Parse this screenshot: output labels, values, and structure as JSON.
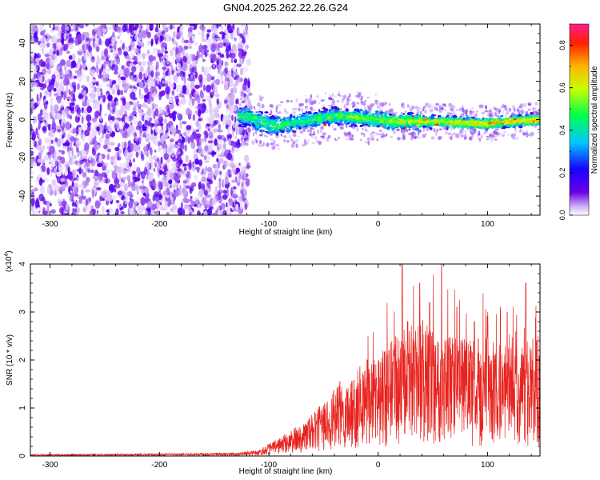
{
  "title": "GN04.2025.262.22.26.G24",
  "chart_data": [
    {
      "type": "heatmap",
      "name": "spectrogram",
      "xlabel": "Height of straight line (km)",
      "ylabel": "Frequency (Hz)",
      "xlim": [
        -318,
        148
      ],
      "ylim": [
        -50,
        50
      ],
      "xticks": [
        -300,
        -200,
        -100,
        0,
        100
      ],
      "yticks": [
        -40,
        -20,
        0,
        20,
        40
      ],
      "noise_region_x": [
        -318,
        -122
      ],
      "signal_band": {
        "x_start": -128,
        "center_freq": [
          {
            "x": -125,
            "f": 2
          },
          {
            "x": -110,
            "f": 0
          },
          {
            "x": -95,
            "f": -4
          },
          {
            "x": -80,
            "f": -2
          },
          {
            "x": -60,
            "f": 0
          },
          {
            "x": -40,
            "f": 2
          },
          {
            "x": -20,
            "f": 1
          },
          {
            "x": 0,
            "f": 0
          },
          {
            "x": 20,
            "f": -1
          },
          {
            "x": 40,
            "f": -1
          },
          {
            "x": 60,
            "f": -1
          },
          {
            "x": 80,
            "f": -2
          },
          {
            "x": 100,
            "f": -2
          },
          {
            "x": 120,
            "f": -1
          },
          {
            "x": 148,
            "f": 0
          }
        ]
      },
      "colorbar": {
        "label": "Normalized spectral amplitude",
        "range": [
          0,
          0.9
        ],
        "ticks": [
          "0.0",
          "0.2",
          "0.4",
          "0.6",
          "0.8"
        ],
        "tick_values": [
          0,
          0.2,
          0.4,
          0.6,
          0.8
        ]
      }
    },
    {
      "type": "line",
      "name": "snr",
      "xlabel": "Height of straight line (km)",
      "ylabel": "SNR (10 * v/v)",
      "y_multiplier_base": "(x10",
      "y_multiplier_exp": "4",
      "y_multiplier_close": ")",
      "xlim": [
        -318,
        148
      ],
      "ylim": [
        0,
        4
      ],
      "xticks": [
        -300,
        -200,
        -100,
        0,
        100
      ],
      "yticks": [
        0,
        1,
        2,
        3,
        4
      ],
      "color": "#e8231e",
      "envelope": [
        {
          "x": -318,
          "y": 0.02
        },
        {
          "x": -200,
          "y": 0.03
        },
        {
          "x": -130,
          "y": 0.04
        },
        {
          "x": -110,
          "y": 0.07
        },
        {
          "x": -100,
          "y": 0.15
        },
        {
          "x": -80,
          "y": 0.3
        },
        {
          "x": -60,
          "y": 0.5
        },
        {
          "x": -40,
          "y": 0.8
        },
        {
          "x": -20,
          "y": 1.0
        },
        {
          "x": 0,
          "y": 1.2
        },
        {
          "x": 20,
          "y": 1.5
        },
        {
          "x": 40,
          "y": 1.6
        },
        {
          "x": 60,
          "y": 1.5
        },
        {
          "x": 80,
          "y": 1.4
        },
        {
          "x": 100,
          "y": 1.4
        },
        {
          "x": 120,
          "y": 1.3
        },
        {
          "x": 148,
          "y": 1.3
        }
      ],
      "peaks": [
        {
          "x": -35,
          "y": 1.55
        },
        {
          "x": -10,
          "y": 2.0
        },
        {
          "x": 10,
          "y": 2.2
        },
        {
          "x": 22,
          "y": 4.0
        },
        {
          "x": 27,
          "y": 2.8
        },
        {
          "x": 38,
          "y": 3.6
        },
        {
          "x": 47,
          "y": 3.2
        },
        {
          "x": 58,
          "y": 4.0
        },
        {
          "x": 72,
          "y": 3.1
        },
        {
          "x": 88,
          "y": 2.8
        },
        {
          "x": 118,
          "y": 3.0
        },
        {
          "x": 135,
          "y": 3.6
        },
        {
          "x": 145,
          "y": 2.4
        }
      ]
    }
  ]
}
